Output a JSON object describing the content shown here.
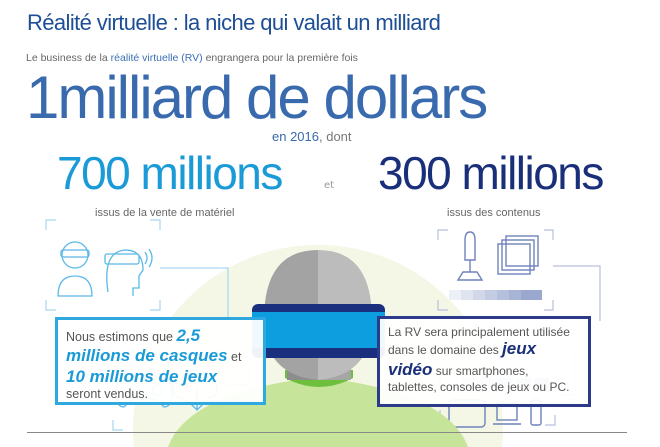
{
  "title": "Réalité virtuelle : la niche qui valait un milliard",
  "intro": {
    "before": "Le business de la ",
    "highlight": "réalité virtuelle (RV)",
    "after": " engrangera pour la première fois"
  },
  "headline": "1milliard de dollars",
  "year_line": {
    "highlight": "en 2016",
    "after": ", dont"
  },
  "hardware": {
    "amount": "700 millions",
    "caption": "issus de la vente de matériel",
    "color": "#1a9ad6"
  },
  "connector": "et",
  "content": {
    "amount": "300 millions",
    "caption": "issus des contenus",
    "color": "#1a2f7a"
  },
  "left_box": {
    "t1": "Nous estimons que ",
    "e1": "2,5 millions de casques",
    "t2": " et ",
    "e2": "10 millions de jeux",
    "t3": " seront vendus."
  },
  "right_box": {
    "t1": "La RV sera principalement utilisée dans le domaine des ",
    "e1": "jeux vidéo",
    "t2": " sur smartphones, tablettes, consoles de jeux ou PC."
  },
  "icons": [
    "vr-headset-person-icon",
    "vr-headset-profile-icon",
    "gamepad-icon",
    "cloud-download-icon",
    "joystick-icon",
    "film-icon",
    "tablet-icon",
    "laptop-icon",
    "smartphone-icon"
  ]
}
